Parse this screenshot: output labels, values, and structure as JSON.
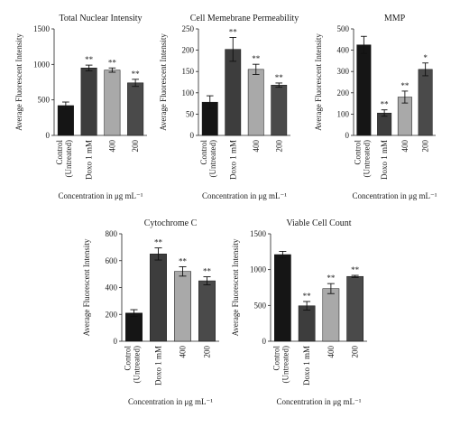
{
  "chart_data": [
    {
      "type": "bar",
      "title": "Total Nuclear Intensity",
      "ylabel": "Average Fluorescent Intensity",
      "xlabel": "Concentration in μg mL⁻¹",
      "categories": [
        "Control (Untreated)",
        "Doxo 1 mM",
        "400",
        "200"
      ],
      "values": [
        420,
        950,
        920,
        740
      ],
      "errors": [
        50,
        40,
        30,
        50
      ],
      "significance": [
        "",
        "**",
        "**",
        "**"
      ],
      "colors": [
        "#151515",
        "#3d3d3d",
        "#a9a9a9",
        "#4a4a4a"
      ],
      "ylim": [
        0,
        1500
      ],
      "yticks": [
        0,
        500,
        1000,
        1500
      ]
    },
    {
      "type": "bar",
      "title": "Cell Memebrane Permeability",
      "ylabel": "Average Fluorescent Intensity",
      "xlabel": "Concentration in μg mL⁻¹",
      "categories": [
        "Control (Untreated)",
        "Doxo 1 mM",
        "400",
        "200"
      ],
      "values": [
        78,
        202,
        155,
        118
      ],
      "errors": [
        15,
        28,
        12,
        5
      ],
      "significance": [
        "",
        "**",
        "**",
        "**"
      ],
      "colors": [
        "#151515",
        "#3d3d3d",
        "#a9a9a9",
        "#4a4a4a"
      ],
      "ylim": [
        0,
        250
      ],
      "yticks": [
        0,
        50,
        100,
        150,
        200,
        250
      ]
    },
    {
      "type": "bar",
      "title": "MMP",
      "ylabel": "Average Fluorescent Intensity",
      "xlabel": "Concentration in μg mL⁻¹",
      "categories": [
        "Control (Untreated)",
        "Doxo 1 mM",
        "400",
        "200"
      ],
      "values": [
        425,
        105,
        180,
        310
      ],
      "errors": [
        40,
        15,
        28,
        30
      ],
      "significance": [
        "",
        "**",
        "**",
        "*"
      ],
      "colors": [
        "#151515",
        "#3d3d3d",
        "#a9a9a9",
        "#4a4a4a"
      ],
      "ylim": [
        0,
        500
      ],
      "yticks": [
        0,
        100,
        200,
        300,
        400,
        500
      ]
    },
    {
      "type": "bar",
      "title": "Cytochrome C",
      "ylabel": "Average Fluorescent Intensity",
      "xlabel": "Concentration in μg mL⁻¹",
      "categories": [
        "Control (Untreated)",
        "Doxo 1 mM",
        "400",
        "200"
      ],
      "values": [
        210,
        650,
        520,
        450
      ],
      "errors": [
        25,
        45,
        35,
        30
      ],
      "significance": [
        "",
        "**",
        "**",
        "**"
      ],
      "colors": [
        "#151515",
        "#3d3d3d",
        "#a9a9a9",
        "#4a4a4a"
      ],
      "ylim": [
        0,
        800
      ],
      "yticks": [
        0,
        200,
        400,
        600,
        800
      ]
    },
    {
      "type": "bar",
      "title": "Viable Cell Count",
      "ylabel": "Average Fluorescent Intensity",
      "xlabel": "Concentration in μg mL⁻¹",
      "categories": [
        "Control (Untreated)",
        "Doxo 1 mM",
        "400",
        "200"
      ],
      "values": [
        1210,
        495,
        735,
        905
      ],
      "errors": [
        45,
        60,
        70,
        15
      ],
      "significance": [
        "",
        "**",
        "**",
        "**"
      ],
      "colors": [
        "#151515",
        "#3d3d3d",
        "#a9a9a9",
        "#4a4a4a"
      ],
      "ylim": [
        0,
        1500
      ],
      "yticks": [
        0,
        500,
        1000,
        1500
      ]
    }
  ]
}
